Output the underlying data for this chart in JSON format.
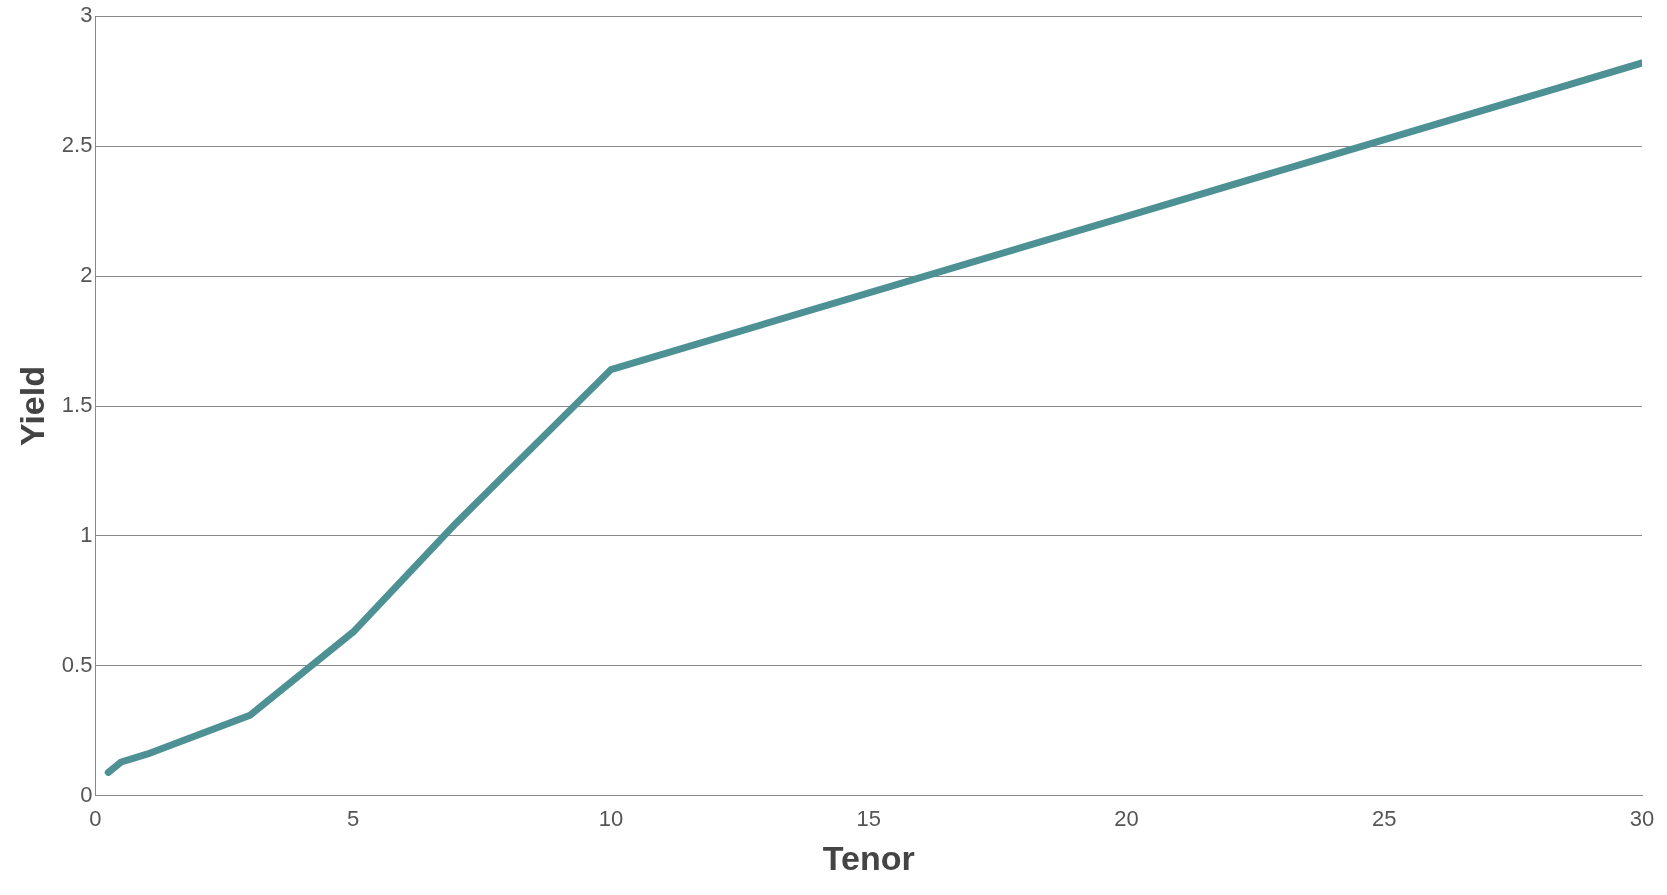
{
  "chart_data": {
    "type": "line",
    "xlabel": "Tenor",
    "ylabel": "Yield",
    "x": [
      0.25,
      0.5,
      1,
      3,
      5,
      7,
      10,
      20,
      30
    ],
    "series": [
      {
        "color": "#4e9195",
        "values": [
          0.09,
          0.13,
          0.16,
          0.31,
          0.63,
          1.05,
          1.64,
          2.23,
          2.82
        ]
      }
    ],
    "xlim": [
      0,
      30
    ],
    "xticks": [
      0,
      5,
      10,
      15,
      20,
      25,
      30
    ],
    "ylim": [
      0,
      3
    ],
    "yticks": [
      0,
      0.5,
      1,
      1.5,
      2,
      2.5,
      3
    ],
    "grid": "y",
    "legend": false,
    "marker": "none",
    "line_style": "solid"
  }
}
